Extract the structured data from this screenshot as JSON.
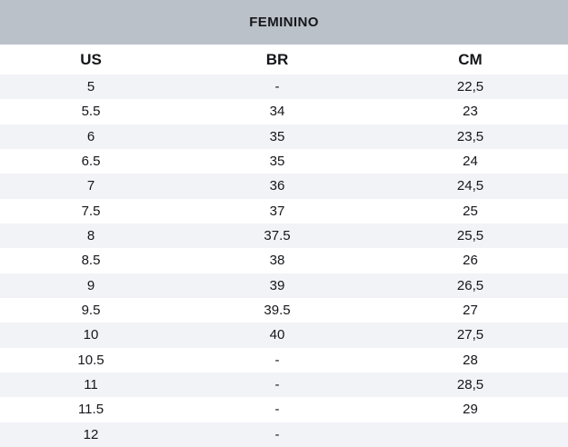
{
  "chart_data": {
    "type": "table",
    "title": "FEMININO",
    "columns": [
      "US",
      "BR",
      "CM"
    ],
    "rows": [
      [
        "5",
        "-",
        "22,5"
      ],
      [
        "5.5",
        "34",
        "23"
      ],
      [
        "6",
        "35",
        "23,5"
      ],
      [
        "6.5",
        "35",
        "24"
      ],
      [
        "7",
        "36",
        "24,5"
      ],
      [
        "7.5",
        "37",
        "25"
      ],
      [
        "8",
        "37.5",
        "25,5"
      ],
      [
        "8.5",
        "38",
        "26"
      ],
      [
        "9",
        "39",
        "26,5"
      ],
      [
        "9.5",
        "39.5",
        "27"
      ],
      [
        "10",
        "40",
        "27,5"
      ],
      [
        "10.5",
        "-",
        "28"
      ],
      [
        "11",
        "-",
        "28,5"
      ],
      [
        "11.5",
        "-",
        "29"
      ],
      [
        "12",
        "-",
        ""
      ]
    ]
  },
  "colors": {
    "banner_bg": "#bac1c9",
    "row_alt_bg": "#f2f3f7",
    "text": "#15161a"
  }
}
